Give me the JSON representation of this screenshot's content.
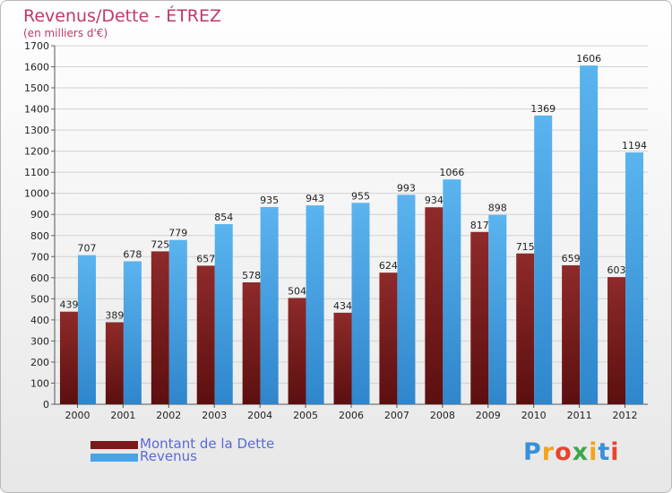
{
  "chart_data": {
    "type": "bar",
    "title": "Revenus/Dette - ÉTREZ",
    "subtitle": "(en milliers d'€)",
    "categories": [
      "2000",
      "2001",
      "2002",
      "2003",
      "2004",
      "2005",
      "2006",
      "2007",
      "2008",
      "2009",
      "2010",
      "2011",
      "2012"
    ],
    "series": [
      {
        "name": "Montant de la Dette",
        "color": "#7a1a1a",
        "values": [
          439,
          389,
          725,
          657,
          578,
          504,
          434,
          624,
          934,
          817,
          715,
          659,
          603
        ]
      },
      {
        "name": "Revenus",
        "color": "#4aa3e6",
        "values": [
          707,
          678,
          779,
          854,
          935,
          943,
          955,
          993,
          1066,
          898,
          1369,
          1606,
          1194
        ]
      }
    ],
    "ylim": [
      0,
      1700
    ],
    "yticks": [
      0,
      100,
      200,
      300,
      400,
      500,
      600,
      700,
      800,
      900,
      1000,
      1100,
      1200,
      1300,
      1400,
      1500,
      1600,
      1700
    ],
    "grid": true,
    "legend_position": "bottom-left"
  },
  "logo": {
    "text": "Proxiti",
    "letters": [
      "P",
      "r",
      "o",
      "x",
      "i",
      "t",
      "i"
    ],
    "colors": [
      "#3a8fd8",
      "#f2a41c",
      "#e8452e",
      "#3aa84a",
      "#f2a41c",
      "#3a8fd8",
      "#e8452e"
    ]
  }
}
